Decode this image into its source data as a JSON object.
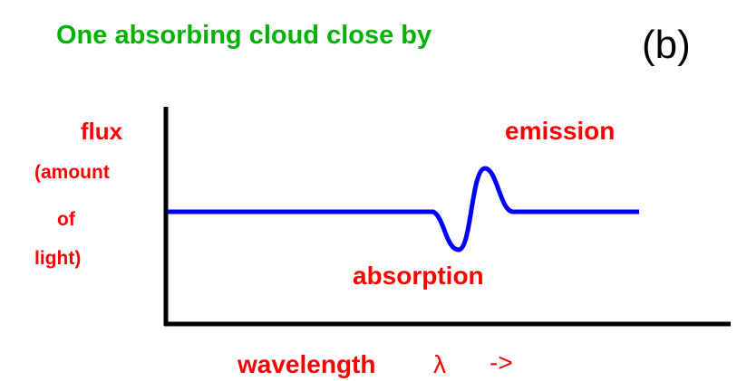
{
  "title": "One absorbing cloud close by",
  "panel_label": "(b)",
  "y_axis_label": [
    "flux",
    "(amount",
    "of",
    "light)"
  ],
  "annotations": {
    "emission": "emission",
    "absorption": "absorption"
  },
  "x_axis_label": {
    "text": "wavelength",
    "symbol": "λ",
    "arrow": "->"
  }
}
